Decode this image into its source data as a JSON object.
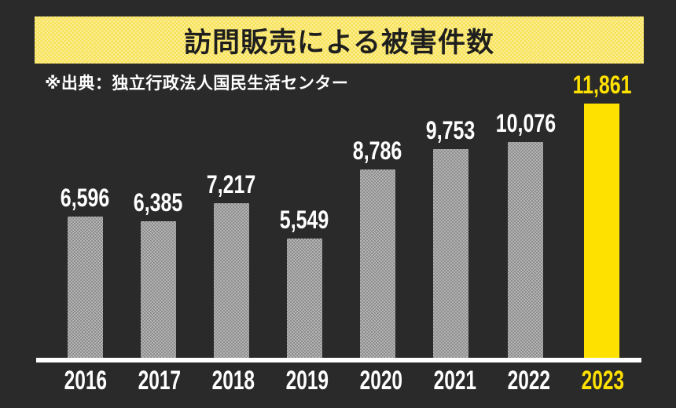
{
  "header": {
    "title": "訪問販売による被害件数",
    "source": "※出典：独立行政法人国民生活センター"
  },
  "colors": {
    "background": "#2A2A2A",
    "banner_yellow": "#F7E158",
    "accent_yellow": "#FFE100",
    "bar_gray_light": "#B3B3B3",
    "bar_gray_dark": "#8E8E8E",
    "title_text": "#1E1E1E",
    "label_white": "#FFFFFF"
  },
  "chart_data": {
    "type": "bar",
    "title": "訪問販売による被害件数",
    "source": "※出典：独立行政法人国民生活センター",
    "xlabel": "",
    "ylabel": "",
    "categories": [
      "2016",
      "2017",
      "2018",
      "2019",
      "2020",
      "2021",
      "2022",
      "2023"
    ],
    "values": [
      6596,
      6385,
      7217,
      5549,
      8786,
      9753,
      10076,
      11861
    ],
    "values_formatted": [
      "6,596",
      "6,385",
      "7,217",
      "5,549",
      "8,786",
      "9,753",
      "10,076",
      "11,861"
    ],
    "highlight_index": 7,
    "highlight_category": "2023",
    "ylim": [
      0,
      11861
    ],
    "grid": false,
    "legend": false,
    "value_labels": "above-bars"
  }
}
